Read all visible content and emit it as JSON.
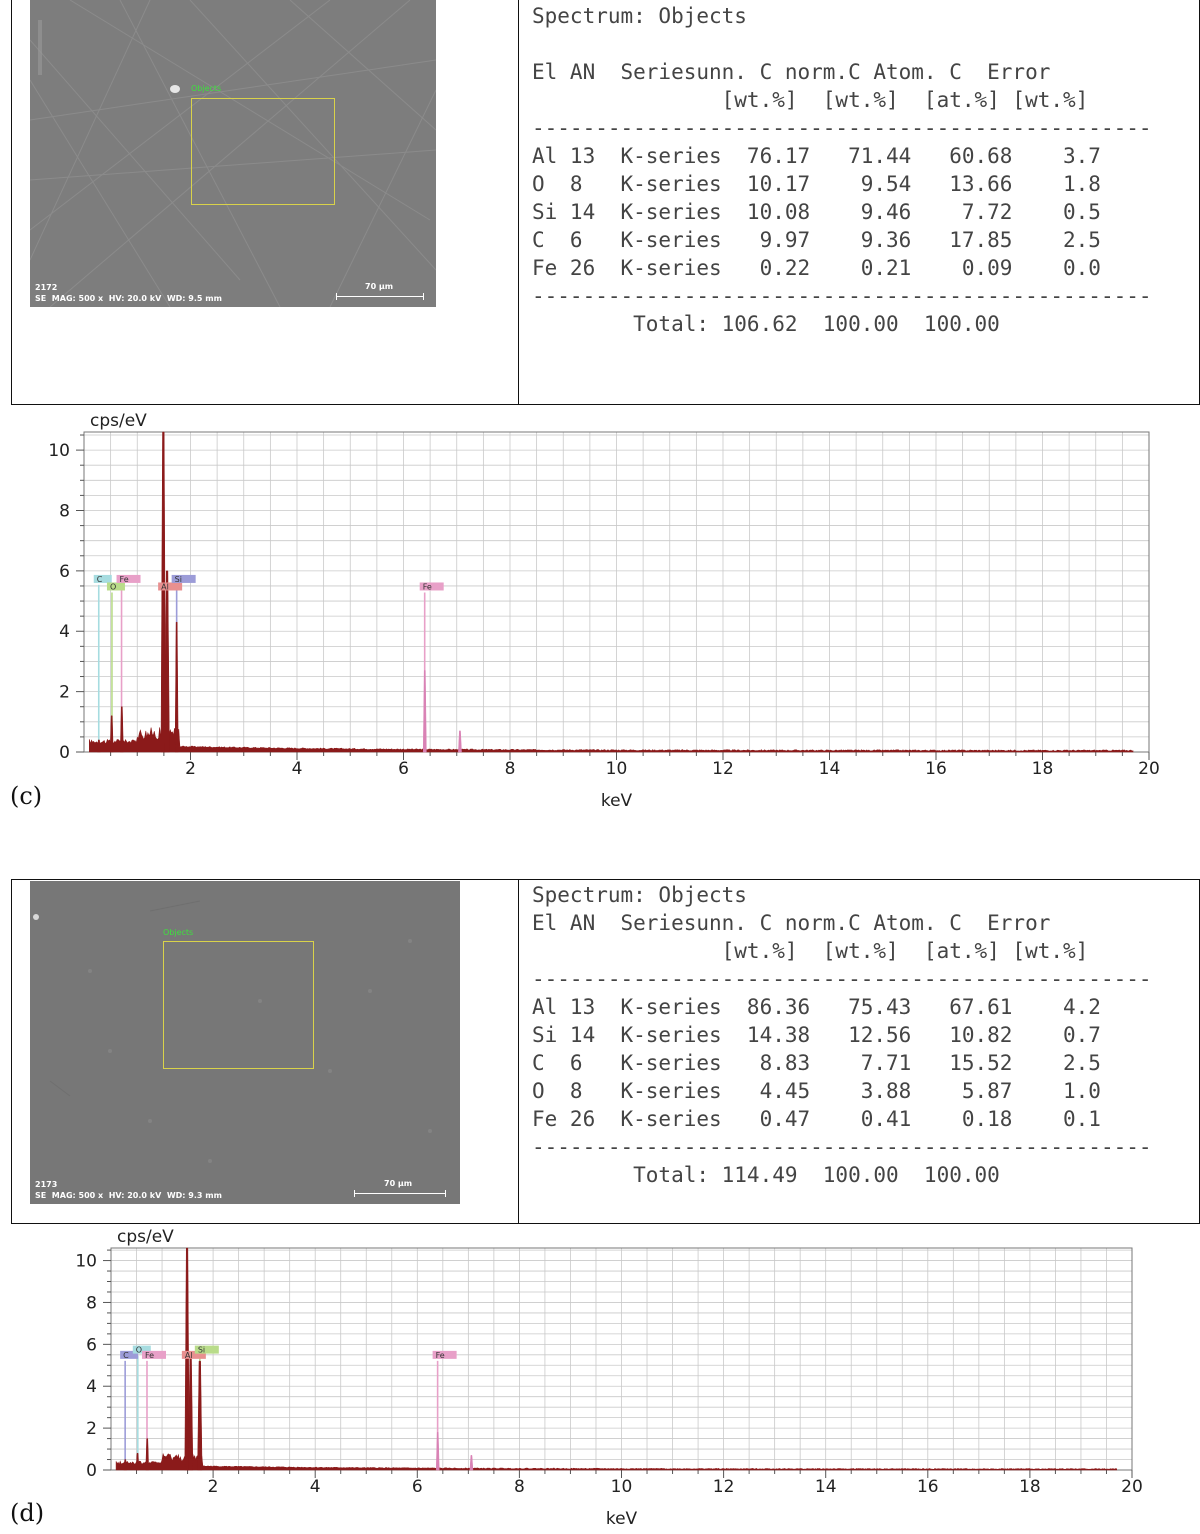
{
  "panels": [
    {
      "letter": "(c)",
      "sem": {
        "roi_label": "Objects",
        "id": "2172",
        "params": "SE  MAG: 500 x  HV: 20.0 kV  WD: 9.5 mm",
        "scale": "70 µm"
      },
      "table": {
        "title": "Spectrum: Objects",
        "header1": "El AN  Seriesunn. C norm.C Atom. C  Error",
        "header2": "               [wt.%]  [wt.%]  [at.%] [wt.%]",
        "rule": "-------------------------------------------------",
        "rows": [
          "Al 13  K-series  76.17   71.44   60.68    3.7",
          "O  8   K-series  10.17    9.54   13.66    1.8",
          "Si 14  K-series  10.08    9.46    7.72    0.5",
          "C  6   K-series   9.97    9.36   17.85    2.5",
          "Fe 26  K-series   0.22    0.21    0.09    0.0"
        ],
        "total": "        Total: 106.62  100.00  100.00"
      },
      "chart_data": {
        "type": "line",
        "xlabel": "keV",
        "ylabel": "cps/eV",
        "xlim": [
          0,
          20
        ],
        "ylim": [
          0,
          10.6
        ],
        "xticks": [
          2,
          4,
          6,
          8,
          10,
          12,
          14,
          16,
          18,
          20
        ],
        "yticks": [
          0,
          2,
          4,
          6,
          8,
          10
        ],
        "grid": true,
        "peaks": [
          {
            "x": 0.28,
            "y": 0.4
          },
          {
            "x": 0.52,
            "y": 1.2
          },
          {
            "x": 0.71,
            "y": 1.5
          },
          {
            "x": 1.49,
            "y": 10.6
          },
          {
            "x": 1.56,
            "y": 6.0
          },
          {
            "x": 1.74,
            "y": 4.3
          },
          {
            "x": 6.4,
            "y": 2.7
          },
          {
            "x": 7.06,
            "y": 0.7
          }
        ],
        "element_markers": [
          {
            "label": "C",
            "x": 0.277,
            "label_y": 5.7,
            "color": "#a6dce0"
          },
          {
            "label": "O",
            "x": 0.525,
            "label_y": 5.45,
            "color": "#b9dc8a"
          },
          {
            "label": "Fe",
            "x": 0.705,
            "label_y": 5.7,
            "color": "#e8a0c8"
          },
          {
            "label": "Al",
            "x": 1.486,
            "label_y": 5.45,
            "color": "#e89090"
          },
          {
            "label": "Si",
            "x": 1.74,
            "label_y": 5.7,
            "color": "#9c9cd8"
          },
          {
            "label": "Fe",
            "x": 6.398,
            "label_y": 5.45,
            "color": "#e8a0c8"
          }
        ]
      }
    },
    {
      "letter": "(d)",
      "sem": {
        "roi_label": "Objects",
        "id": "2173",
        "params": "SE  MAG: 500 x  HV: 20.0 kV  WD: 9.3 mm",
        "scale": "70 µm"
      },
      "table": {
        "title": "Spectrum: Objects",
        "header1": "El AN  Seriesunn. C norm.C Atom. C  Error",
        "header2": "               [wt.%]  [wt.%]  [at.%] [wt.%]",
        "rule": "-------------------------------------------------",
        "rows": [
          "Al 13  K-series  86.36   75.43   67.61    4.2",
          "Si 14  K-series  14.38   12.56   10.82    0.7",
          "C  6   K-series   8.83    7.71   15.52    2.5",
          "O  8   K-series   4.45    3.88    5.87    1.0",
          "Fe 26  K-series   0.47    0.41    0.18    0.1"
        ],
        "total": "        Total: 114.49  100.00  100.00"
      },
      "chart_data": {
        "type": "line",
        "xlabel": "keV",
        "ylabel": "cps/eV",
        "xlim": [
          0,
          20
        ],
        "ylim": [
          0,
          10.6
        ],
        "xticks": [
          2,
          4,
          6,
          8,
          10,
          12,
          14,
          16,
          18,
          20
        ],
        "yticks": [
          0,
          2,
          4,
          6,
          8,
          10
        ],
        "grid": true,
        "peaks": [
          {
            "x": 0.28,
            "y": 0.5
          },
          {
            "x": 0.52,
            "y": 0.8
          },
          {
            "x": 0.71,
            "y": 1.5
          },
          {
            "x": 1.49,
            "y": 10.6
          },
          {
            "x": 1.56,
            "y": 5.5
          },
          {
            "x": 1.74,
            "y": 5.2
          },
          {
            "x": 6.4,
            "y": 1.8
          },
          {
            "x": 7.06,
            "y": 0.7
          }
        ],
        "element_markers": [
          {
            "label": "C",
            "x": 0.277,
            "label_y": 5.45,
            "color": "#9c9cd8"
          },
          {
            "label": "O",
            "x": 0.525,
            "label_y": 5.7,
            "color": "#a6dce0"
          },
          {
            "label": "Fe",
            "x": 0.705,
            "label_y": 5.45,
            "color": "#e8a0c8"
          },
          {
            "label": "Al",
            "x": 1.486,
            "label_y": 5.45,
            "color": "#e89090"
          },
          {
            "label": "Si",
            "x": 1.74,
            "label_y": 5.7,
            "color": "#b9dc8a"
          },
          {
            "label": "Fe",
            "x": 6.398,
            "label_y": 5.45,
            "color": "#e8a0c8"
          }
        ]
      }
    }
  ]
}
